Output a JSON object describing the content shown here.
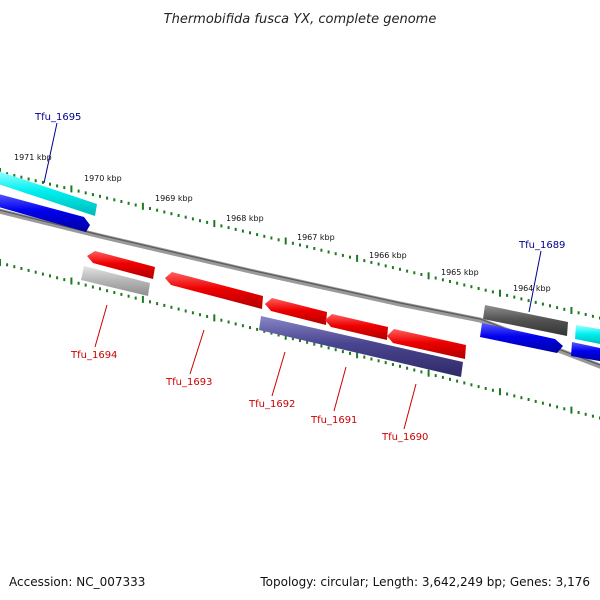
{
  "title": "Thermobifida fusca YX, complete genome",
  "accession": "Accession: NC_007333",
  "summary": "Topology: circular; Length: 3,642,249 bp; Genes: 3,176",
  "colors": {
    "tick": "#1f7a1f",
    "backbone": "#808080",
    "label_forward": "#00008b",
    "label_reverse": "#cc0000",
    "cds_red": "#ee0000",
    "cds_blue": "#0000ee",
    "cds_cyan": "#00f0f0",
    "cds_purple": "#4a4590",
    "cds_darkgray": "#555555",
    "cds_lightgray": "#b0b0b0"
  },
  "scale_labels": [
    "1971 kbp",
    "1970 kbp",
    "1969 kbp",
    "1968 kbp",
    "1967 kbp",
    "1966 kbp",
    "1965 kbp",
    "1964 kbp"
  ],
  "gene_labels": [
    {
      "name": "Tfu_1695",
      "strand": "forward"
    },
    {
      "name": "Tfu_1689",
      "strand": "forward"
    },
    {
      "name": "Tfu_1694",
      "strand": "reverse"
    },
    {
      "name": "Tfu_1693",
      "strand": "reverse"
    },
    {
      "name": "Tfu_1692",
      "strand": "reverse"
    },
    {
      "name": "Tfu_1691",
      "strand": "reverse"
    },
    {
      "name": "Tfu_1690",
      "strand": "reverse"
    }
  ]
}
